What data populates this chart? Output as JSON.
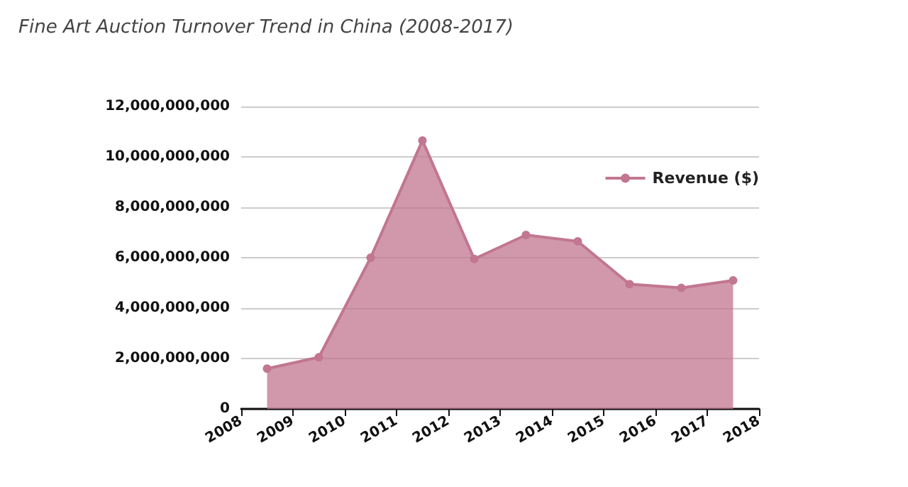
{
  "chart_data": {
    "type": "area",
    "title": "Fine Art Auction Turnover Trend in China (2008-2017)",
    "x": [
      2008.5,
      2009.5,
      2010.5,
      2011.5,
      2012.5,
      2013.5,
      2014.5,
      2015.5,
      2016.5,
      2017.5
    ],
    "series": [
      {
        "name": "Revenue ($)",
        "color": "#c27690",
        "values": [
          1600000000,
          2050000000,
          6000000000,
          10650000000,
          5950000000,
          6900000000,
          6650000000,
          4950000000,
          4800000000,
          5100000000
        ]
      }
    ],
    "xlim": [
      2008,
      2018
    ],
    "xticks": [
      2008,
      2009,
      2010,
      2011,
      2012,
      2013,
      2014,
      2015,
      2016,
      2017,
      2018
    ],
    "ylim": [
      0,
      12000000000
    ],
    "yticks": [
      0,
      {
        "value": 2000000000,
        "label": "2,000,000,000"
      },
      {
        "value": 4000000000,
        "label": "4,000,000,000"
      },
      {
        "value": 6000000000,
        "label": "6,000,000,000"
      },
      {
        "value": 8000000000,
        "label": "8,000,000,000"
      },
      {
        "value": 10000000000,
        "label": "10,000,000,000"
      },
      {
        "value": 12000000000,
        "label": "12,000,000,000"
      }
    ],
    "grid": "y",
    "legend": "top right",
    "marker": "circle"
  }
}
